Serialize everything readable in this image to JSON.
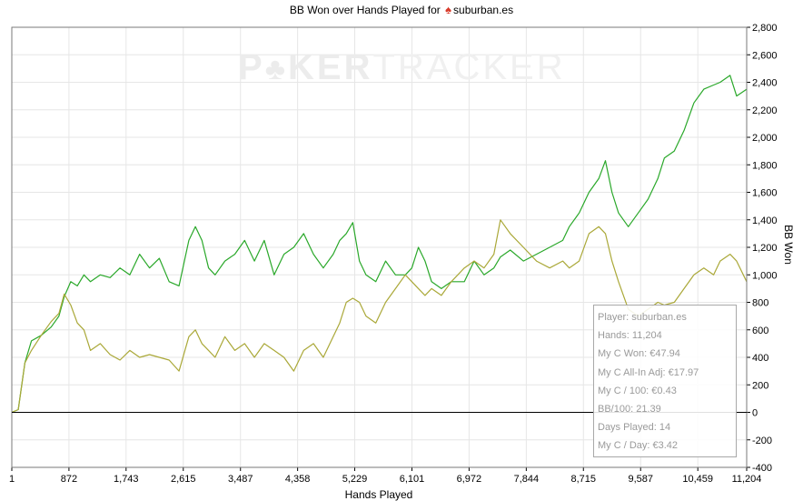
{
  "title": {
    "prefix": "BB Won over Hands Played for",
    "icon": "spade-icon",
    "icon_color": "#d83a2a",
    "player": "suburban.es"
  },
  "watermark": {
    "part1": "P",
    "part2": "KER",
    "part3": "TRACKER"
  },
  "colors": {
    "bb_won": "#2aa82a",
    "all_in_adj": "#aaa838",
    "grid": "#e6e6e6",
    "zero_line": "#000000"
  },
  "stats": [
    "Player: suburban.es",
    "Hands: 11,204",
    "My C Won: €47.94",
    "My C All-In Adj: €17.97",
    "My C / 100: €0.43",
    "BB/100: 21.39",
    "Days Played: 14",
    "My C / Day: €3.42"
  ],
  "chart_data": {
    "type": "line",
    "xlabel": "Hands Played",
    "ylabel": "BB Won",
    "xlim": [
      1,
      11204
    ],
    "ylim": [
      -400,
      2800
    ],
    "x_ticks": [
      "1",
      "872",
      "1,743",
      "2,615",
      "3,487",
      "4,358",
      "5,229",
      "6,101",
      "6,972",
      "7,844",
      "8,715",
      "9,587",
      "10,459",
      "11,204"
    ],
    "x_tick_values": [
      1,
      872,
      1743,
      2615,
      3487,
      4358,
      5229,
      6101,
      6972,
      7844,
      8715,
      9587,
      10459,
      11204
    ],
    "y_ticks": [
      "-400",
      "-200",
      "0",
      "200",
      "400",
      "600",
      "800",
      "1,000",
      "1,200",
      "1,400",
      "1,600",
      "1,800",
      "2,000",
      "2,200",
      "2,400",
      "2,600",
      "2,800"
    ],
    "y_tick_values": [
      -400,
      -200,
      0,
      200,
      400,
      600,
      800,
      1000,
      1200,
      1400,
      1600,
      1800,
      2000,
      2200,
      2400,
      2600,
      2800
    ],
    "grid": true,
    "series": [
      {
        "id": "bb_won",
        "values": [
          [
            1,
            0
          ],
          [
            100,
            20
          ],
          [
            200,
            360
          ],
          [
            300,
            520
          ],
          [
            450,
            560
          ],
          [
            600,
            620
          ],
          [
            720,
            700
          ],
          [
            800,
            840
          ],
          [
            900,
            950
          ],
          [
            1000,
            920
          ],
          [
            1100,
            1000
          ],
          [
            1200,
            950
          ],
          [
            1350,
            1000
          ],
          [
            1500,
            980
          ],
          [
            1650,
            1050
          ],
          [
            1800,
            1000
          ],
          [
            1950,
            1150
          ],
          [
            2100,
            1050
          ],
          [
            2250,
            1120
          ],
          [
            2400,
            950
          ],
          [
            2550,
            920
          ],
          [
            2700,
            1250
          ],
          [
            2800,
            1350
          ],
          [
            2900,
            1250
          ],
          [
            3000,
            1050
          ],
          [
            3100,
            1000
          ],
          [
            3250,
            1100
          ],
          [
            3400,
            1150
          ],
          [
            3550,
            1250
          ],
          [
            3700,
            1100
          ],
          [
            3850,
            1250
          ],
          [
            4000,
            1000
          ],
          [
            4150,
            1150
          ],
          [
            4300,
            1200
          ],
          [
            4450,
            1300
          ],
          [
            4600,
            1150
          ],
          [
            4750,
            1050
          ],
          [
            4900,
            1150
          ],
          [
            5000,
            1250
          ],
          [
            5100,
            1300
          ],
          [
            5200,
            1380
          ],
          [
            5300,
            1100
          ],
          [
            5400,
            1000
          ],
          [
            5550,
            950
          ],
          [
            5700,
            1100
          ],
          [
            5850,
            1000
          ],
          [
            6000,
            1000
          ],
          [
            6100,
            1050
          ],
          [
            6200,
            1200
          ],
          [
            6300,
            1100
          ],
          [
            6400,
            950
          ],
          [
            6550,
            900
          ],
          [
            6700,
            950
          ],
          [
            6900,
            950
          ],
          [
            7050,
            1100
          ],
          [
            7200,
            1000
          ],
          [
            7350,
            1050
          ],
          [
            7450,
            1130
          ],
          [
            7600,
            1180
          ],
          [
            7800,
            1100
          ],
          [
            8000,
            1150
          ],
          [
            8200,
            1200
          ],
          [
            8400,
            1250
          ],
          [
            8500,
            1350
          ],
          [
            8650,
            1450
          ],
          [
            8800,
            1600
          ],
          [
            8950,
            1700
          ],
          [
            9050,
            1830
          ],
          [
            9150,
            1600
          ],
          [
            9250,
            1450
          ],
          [
            9400,
            1350
          ],
          [
            9550,
            1450
          ],
          [
            9700,
            1550
          ],
          [
            9850,
            1700
          ],
          [
            9950,
            1850
          ],
          [
            10100,
            1900
          ],
          [
            10250,
            2050
          ],
          [
            10400,
            2250
          ],
          [
            10550,
            2350
          ],
          [
            10700,
            2380
          ],
          [
            10800,
            2400
          ],
          [
            10950,
            2450
          ],
          [
            11050,
            2300
          ],
          [
            11204,
            2350
          ]
        ]
      },
      {
        "id": "all_in_adj",
        "values": [
          [
            1,
            0
          ],
          [
            100,
            20
          ],
          [
            200,
            360
          ],
          [
            300,
            450
          ],
          [
            450,
            560
          ],
          [
            600,
            660
          ],
          [
            720,
            720
          ],
          [
            800,
            860
          ],
          [
            900,
            780
          ],
          [
            1000,
            650
          ],
          [
            1100,
            600
          ],
          [
            1200,
            450
          ],
          [
            1350,
            500
          ],
          [
            1500,
            420
          ],
          [
            1650,
            380
          ],
          [
            1800,
            450
          ],
          [
            1950,
            400
          ],
          [
            2100,
            420
          ],
          [
            2250,
            400
          ],
          [
            2400,
            380
          ],
          [
            2550,
            300
          ],
          [
            2700,
            550
          ],
          [
            2800,
            600
          ],
          [
            2900,
            500
          ],
          [
            3000,
            450
          ],
          [
            3100,
            400
          ],
          [
            3250,
            550
          ],
          [
            3400,
            450
          ],
          [
            3550,
            500
          ],
          [
            3700,
            400
          ],
          [
            3850,
            500
          ],
          [
            4000,
            450
          ],
          [
            4150,
            400
          ],
          [
            4300,
            300
          ],
          [
            4450,
            450
          ],
          [
            4600,
            500
          ],
          [
            4750,
            400
          ],
          [
            4900,
            550
          ],
          [
            5000,
            650
          ],
          [
            5100,
            800
          ],
          [
            5200,
            830
          ],
          [
            5300,
            800
          ],
          [
            5400,
            700
          ],
          [
            5550,
            650
          ],
          [
            5700,
            800
          ],
          [
            5850,
            900
          ],
          [
            6000,
            1000
          ],
          [
            6100,
            950
          ],
          [
            6200,
            900
          ],
          [
            6300,
            850
          ],
          [
            6400,
            900
          ],
          [
            6550,
            850
          ],
          [
            6700,
            950
          ],
          [
            6900,
            1050
          ],
          [
            7050,
            1100
          ],
          [
            7200,
            1050
          ],
          [
            7350,
            1150
          ],
          [
            7450,
            1400
          ],
          [
            7600,
            1300
          ],
          [
            7800,
            1200
          ],
          [
            8000,
            1100
          ],
          [
            8200,
            1050
          ],
          [
            8400,
            1100
          ],
          [
            8500,
            1050
          ],
          [
            8650,
            1100
          ],
          [
            8800,
            1300
          ],
          [
            8950,
            1350
          ],
          [
            9050,
            1300
          ],
          [
            9150,
            1100
          ],
          [
            9250,
            950
          ],
          [
            9400,
            750
          ],
          [
            9550,
            700
          ],
          [
            9700,
            750
          ],
          [
            9850,
            800
          ],
          [
            9950,
            780
          ],
          [
            10100,
            800
          ],
          [
            10250,
            900
          ],
          [
            10400,
            1000
          ],
          [
            10550,
            1050
          ],
          [
            10700,
            1000
          ],
          [
            10800,
            1100
          ],
          [
            10950,
            1150
          ],
          [
            11050,
            1100
          ],
          [
            11204,
            950
          ]
        ]
      }
    ]
  }
}
